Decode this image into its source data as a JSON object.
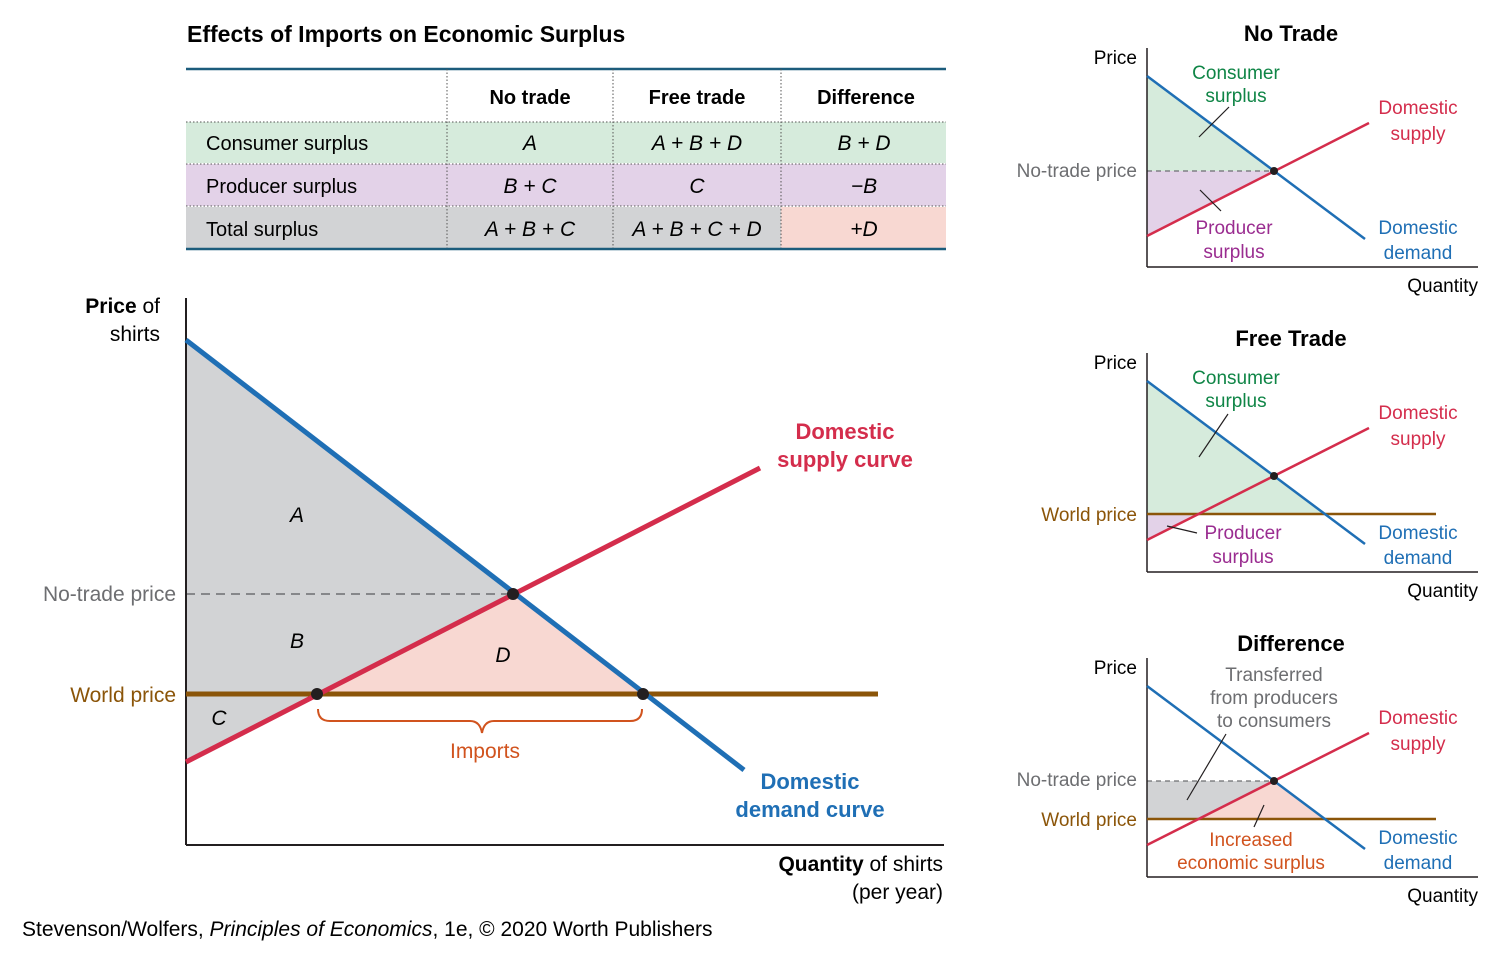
{
  "table": {
    "title": "Effects of Imports on Economic Surplus",
    "headers": [
      "",
      "No trade",
      "Free trade",
      "Difference"
    ],
    "rows": [
      {
        "label": "Consumer surplus",
        "cells": [
          "A",
          "A + B + D",
          "B + D"
        ],
        "bg": "#d6ebdc"
      },
      {
        "label": "Producer surplus",
        "cells": [
          "B + C",
          "C",
          "−B"
        ],
        "bg": "#e3d2e8"
      },
      {
        "label": "Total surplus",
        "cells": [
          "A + B + C",
          "A + B + C + D",
          "+D"
        ],
        "bg": "#d2d3d5",
        "highlight_bg": "#f8d8d2"
      }
    ],
    "rule_color": "#1c5c7c"
  },
  "main": {
    "y_label_bold": "Price",
    "y_label_rest": " of",
    "y_label_line2": "shirts",
    "x_label_bold": "Quantity",
    "x_label_rest": " of shirts",
    "x_label_line2": "(per year)",
    "no_trade_price": "No-trade price",
    "world_price": "World price",
    "supply_label_1": "Domestic",
    "supply_label_2": "supply curve",
    "demand_label_1": "Domestic",
    "demand_label_2": "demand curve",
    "imports": "Imports",
    "region_A": "A",
    "region_B": "B",
    "region_C": "C",
    "region_D": "D"
  },
  "small_panels": [
    {
      "title": "No Trade",
      "price": "Price",
      "quantity": "Quantity",
      "price_line": "No-trade price",
      "upper_1": "Consumer",
      "upper_2": "surplus",
      "lower_1": "Producer",
      "lower_2": "surplus",
      "supply_1": "Domestic",
      "supply_2": "supply",
      "demand_1": "Domestic",
      "demand_2": "demand"
    },
    {
      "title": "Free Trade",
      "price": "Price",
      "quantity": "Quantity",
      "price_line": "World price",
      "upper_1": "Consumer",
      "upper_2": "surplus",
      "lower_1": "Producer",
      "lower_2": "surplus",
      "supply_1": "Domestic",
      "supply_2": "supply",
      "demand_1": "Domestic",
      "demand_2": "demand"
    },
    {
      "title": "Difference",
      "price": "Price",
      "quantity": "Quantity",
      "price_line": "No-trade price",
      "world_price": "World price",
      "upper_1": "Transferred",
      "upper_2": "from producers",
      "upper_3": "to consumers",
      "lower_1": "Increased",
      "lower_2": "economic surplus",
      "supply_1": "Domestic",
      "supply_2": "supply",
      "demand_1": "Domestic",
      "demand_2": "demand"
    }
  ],
  "credit": {
    "pre": "Stevenson/Wolfers, ",
    "book": "Principles of Economics",
    "post": ", 1e, © 2020 Worth Publishers"
  },
  "colors": {
    "supply": "#d42d4c",
    "demand": "#1f6fb5",
    "world_price": "#8b5509",
    "consumer_green": "#0f8546",
    "producer_purple": "#9a2c90",
    "imports_orange": "#d1531e",
    "gray_text": "#6d6e71",
    "gray_fill": "#d2d3d5",
    "green_fill": "#d6ebdc",
    "purple_fill": "#e3d2e8",
    "pink_fill": "#f8d8d2"
  },
  "chart_data": {
    "type": "line",
    "title": "",
    "xlabel": "Quantity of shirts (per year)",
    "ylabel": "Price of shirts",
    "series": [
      {
        "name": "Domestic supply curve"
      },
      {
        "name": "Domestic demand curve"
      },
      {
        "name": "World price"
      }
    ],
    "annotations": [
      "No-trade price",
      "World price",
      "Imports",
      "A",
      "B",
      "C",
      "D"
    ]
  }
}
